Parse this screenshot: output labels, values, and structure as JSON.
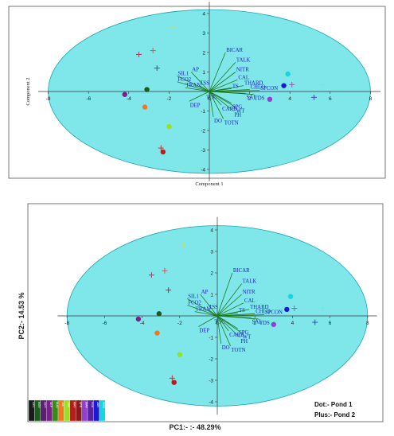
{
  "colors": {
    "ellipse_fill": "#7fe6ea",
    "ellipse_stroke": "#1aa7b5",
    "vector": "#1e7a1e",
    "label": "#1c1cc8",
    "frame": "#555555"
  },
  "chart_data": [
    {
      "type": "scatter",
      "subtype": "pca-biplot",
      "xlabel": "Component 1",
      "ylabel": "Component 2",
      "xlim": [
        -8.5,
        8.5
      ],
      "ylim": [
        -4.6,
        4.6
      ],
      "x_ticks": [
        -8,
        -6,
        -4,
        -2,
        0,
        2,
        4,
        6,
        8
      ],
      "y_ticks": [
        -4,
        -3,
        -2,
        -1,
        1,
        2,
        3,
        4
      ],
      "ellipse": {
        "rx": 8.0,
        "ry": 4.2,
        "center": [
          0,
          0
        ]
      },
      "loadings": [
        {
          "label": "BICAR",
          "x": 0.8,
          "y": 2.0
        },
        {
          "label": "TALK",
          "x": 1.3,
          "y": 1.5
        },
        {
          "label": "NITR",
          "x": 1.3,
          "y": 1.0
        },
        {
          "label": "CAL",
          "x": 1.4,
          "y": 0.6
        },
        {
          "label": "AP",
          "x": -0.9,
          "y": 1.0
        },
        {
          "label": "SIL1",
          "x": -1.6,
          "y": 0.8
        },
        {
          "label": "FCO2",
          "x": -1.6,
          "y": 0.5
        },
        {
          "label": "TRAN",
          "x": -1.2,
          "y": 0.2
        },
        {
          "label": "TSS",
          "x": -0.5,
          "y": 0.3
        },
        {
          "label": "THARD",
          "x": 1.7,
          "y": 0.3
        },
        {
          "label": "TS",
          "x": 1.1,
          "y": 0.15
        },
        {
          "label": "CHLO",
          "x": 2.0,
          "y": 0.1
        },
        {
          "label": "SPCON",
          "x": 2.5,
          "y": 0.05
        },
        {
          "label": "SAL",
          "x": 1.8,
          "y": -0.1
        },
        {
          "label": "TDS",
          "x": 2.2,
          "y": -0.15
        },
        {
          "label": "TOC",
          "x": -0.2,
          "y": -0.1
        },
        {
          "label": "CARB",
          "x": 0.6,
          "y": -0.7
        },
        {
          "label": "SPG",
          "x": 1.1,
          "y": -0.6
        },
        {
          "label": "WT",
          "x": 1.3,
          "y": -0.8
        },
        {
          "label": "PH",
          "x": 1.2,
          "y": -1.0
        },
        {
          "label": "DEP",
          "x": -1.0,
          "y": -0.5
        },
        {
          "label": "DO",
          "x": 0.2,
          "y": -1.3
        },
        {
          "label": "TOTN",
          "x": 0.7,
          "y": -1.4
        }
      ],
      "points_pond1": [
        {
          "x": -4.2,
          "y": -0.15,
          "color": "#7a1f8c"
        },
        {
          "x": -3.1,
          "y": 0.1,
          "color": "#1a5c1a"
        },
        {
          "x": -3.2,
          "y": -0.8,
          "color": "#f07820"
        },
        {
          "x": -2.0,
          "y": -1.8,
          "color": "#9ae020"
        },
        {
          "x": -2.3,
          "y": -3.1,
          "color": "#b02020"
        },
        {
          "x": 3.7,
          "y": 0.3,
          "color": "#1a1ad0"
        },
        {
          "x": 3.9,
          "y": 0.9,
          "color": "#12d6e0"
        },
        {
          "x": 3.0,
          "y": -0.4,
          "color": "#9040d0"
        }
      ],
      "points_pond2": [
        {
          "x": -1.8,
          "y": 3.3,
          "color": "#b8e080"
        },
        {
          "x": -2.8,
          "y": 2.1,
          "color": "#c06060"
        },
        {
          "x": -3.5,
          "y": 1.9,
          "color": "#a04060"
        },
        {
          "x": -2.6,
          "y": 1.2,
          "color": "#605050"
        },
        {
          "x": -2.4,
          "y": -2.9,
          "color": "#c03030"
        },
        {
          "x": 4.1,
          "y": 0.35,
          "color": "#9060b0"
        },
        {
          "x": 5.6,
          "y": 0.35,
          "color": "#80e0e0"
        },
        {
          "x": 5.2,
          "y": -0.3,
          "color": "#3050c0"
        }
      ]
    },
    {
      "type": "scatter",
      "subtype": "pca-biplot",
      "xlabel": "PC1:- :- 48.29%",
      "ylabel": "PC2:- 14.53 %",
      "xlim": [
        -8.5,
        8.5
      ],
      "ylim": [
        -4.6,
        4.6
      ],
      "x_ticks": [
        -8,
        -6,
        -4,
        -2,
        0,
        2,
        4,
        6,
        8
      ],
      "y_ticks": [
        -4,
        -3,
        -2,
        -1,
        1,
        2,
        3,
        4
      ],
      "legend_note_1": "Dot:- Pond 1",
      "legend_note_2": "Plus:- Pond 2",
      "legend_swatches": [
        {
          "label": "DEC",
          "color": "#1a1a1a"
        },
        {
          "label": "NOV",
          "color": "#1a5c1a"
        },
        {
          "label": "OCT",
          "color": "#5a2070"
        },
        {
          "label": "SEP",
          "color": "#7a1f8c"
        },
        {
          "label": "AUG",
          "color": "#3a8a1a"
        },
        {
          "label": "JUL",
          "color": "#f07820"
        },
        {
          "label": "JUN",
          "color": "#9ae020"
        },
        {
          "label": "MAY",
          "color": "#b02020"
        },
        {
          "label": "APR",
          "color": "#8a1a1a"
        },
        {
          "label": "MAR",
          "color": "#9040d0"
        },
        {
          "label": "FEB",
          "color": "#5a20a0"
        },
        {
          "label": "JAN",
          "color": "#1a1ad0"
        },
        {
          "label": "Seas",
          "color": "#12d6e0"
        }
      ]
    }
  ]
}
